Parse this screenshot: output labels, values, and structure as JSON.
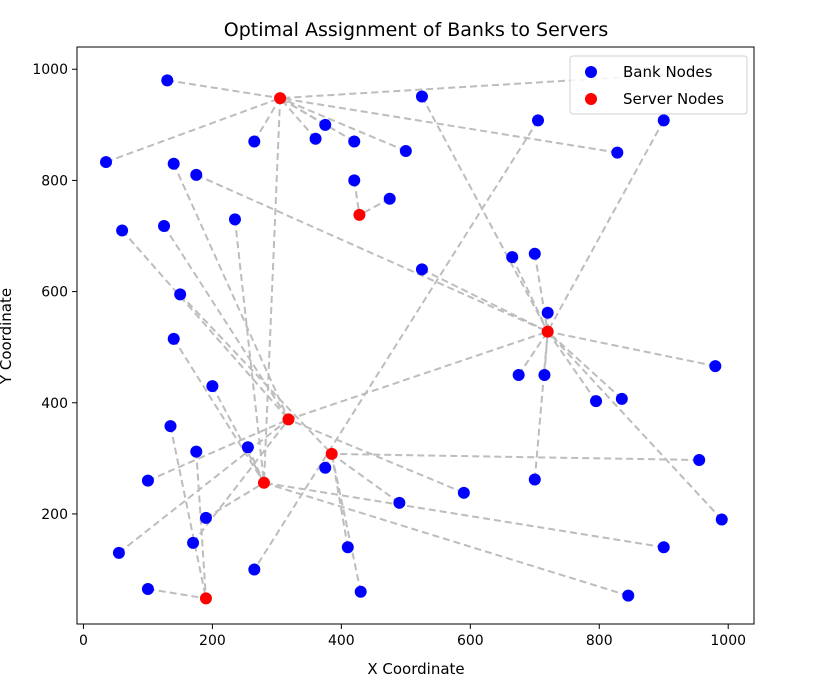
{
  "chart_data": {
    "type": "scatter",
    "title": "Optimal Assignment of Banks to Servers",
    "xlabel": "X Coordinate",
    "ylabel": "Y Coordinate",
    "xlim": [
      -10,
      1040
    ],
    "ylim": [
      2,
      1040
    ],
    "xticks": [
      0,
      200,
      400,
      600,
      800,
      1000
    ],
    "yticks": [
      200,
      400,
      600,
      800,
      1000
    ],
    "grid": false,
    "legend_position": "top-right",
    "colors": {
      "bank": "#0000ff",
      "server": "#ff0000",
      "link": "#bdbdbd"
    },
    "series": [
      {
        "name": "Bank Nodes",
        "points": [
          [
            130,
            980
          ],
          [
            35,
            833
          ],
          [
            140,
            830
          ],
          [
            175,
            810
          ],
          [
            60,
            710
          ],
          [
            125,
            718
          ],
          [
            235,
            730
          ],
          [
            265,
            870
          ],
          [
            360,
            875
          ],
          [
            375,
            900
          ],
          [
            420,
            870
          ],
          [
            500,
            853
          ],
          [
            525,
            951
          ],
          [
            420,
            800
          ],
          [
            475,
            767
          ],
          [
            525,
            640
          ],
          [
            705,
            908
          ],
          [
            828,
            850
          ],
          [
            900,
            908
          ],
          [
            150,
            595
          ],
          [
            140,
            515
          ],
          [
            200,
            430
          ],
          [
            135,
            358
          ],
          [
            175,
            312
          ],
          [
            100,
            260
          ],
          [
            255,
            320
          ],
          [
            190,
            193
          ],
          [
            170,
            148
          ],
          [
            55,
            130
          ],
          [
            100,
            65
          ],
          [
            265,
            100
          ],
          [
            375,
            283
          ],
          [
            410,
            140
          ],
          [
            430,
            60
          ],
          [
            490,
            220
          ],
          [
            590,
            238
          ],
          [
            665,
            662
          ],
          [
            700,
            668
          ],
          [
            720,
            562
          ],
          [
            675,
            450
          ],
          [
            715,
            450
          ],
          [
            795,
            403
          ],
          [
            835,
            407
          ],
          [
            980,
            466
          ],
          [
            955,
            297
          ],
          [
            700,
            262
          ],
          [
            990,
            190
          ],
          [
            900,
            140
          ],
          [
            845,
            53
          ]
        ]
      },
      {
        "name": "Server Nodes",
        "points": [
          [
            305,
            948
          ],
          [
            428,
            738
          ],
          [
            720,
            528
          ],
          [
            318,
            370
          ],
          [
            385,
            308
          ],
          [
            280,
            256
          ],
          [
            190,
            48
          ]
        ]
      }
    ],
    "links": [
      [
        [
          130,
          980
        ],
        [
          305,
          948
        ]
      ],
      [
        [
          35,
          833
        ],
        [
          305,
          948
        ]
      ],
      [
        [
          265,
          870
        ],
        [
          305,
          948
        ]
      ],
      [
        [
          360,
          875
        ],
        [
          305,
          948
        ]
      ],
      [
        [
          375,
          900
        ],
        [
          305,
          948
        ]
      ],
      [
        [
          420,
          870
        ],
        [
          305,
          948
        ]
      ],
      [
        [
          500,
          853
        ],
        [
          305,
          948
        ]
      ],
      [
        [
          828,
          850
        ],
        [
          305,
          948
        ]
      ],
      [
        [
          900,
          990
        ],
        [
          305,
          948
        ]
      ],
      [
        [
          420,
          800
        ],
        [
          428,
          738
        ]
      ],
      [
        [
          475,
          767
        ],
        [
          428,
          738
        ]
      ],
      [
        [
          525,
          951
        ],
        [
          720,
          528
        ]
      ],
      [
        [
          900,
          908
        ],
        [
          720,
          528
        ]
      ],
      [
        [
          175,
          810
        ],
        [
          720,
          528
        ]
      ],
      [
        [
          525,
          640
        ],
        [
          720,
          528
        ]
      ],
      [
        [
          665,
          662
        ],
        [
          720,
          528
        ]
      ],
      [
        [
          700,
          668
        ],
        [
          720,
          528
        ]
      ],
      [
        [
          720,
          562
        ],
        [
          720,
          528
        ]
      ],
      [
        [
          675,
          450
        ],
        [
          720,
          528
        ]
      ],
      [
        [
          715,
          450
        ],
        [
          720,
          528
        ]
      ],
      [
        [
          795,
          403
        ],
        [
          720,
          528
        ]
      ],
      [
        [
          835,
          407
        ],
        [
          720,
          528
        ]
      ],
      [
        [
          980,
          466
        ],
        [
          720,
          528
        ]
      ],
      [
        [
          990,
          190
        ],
        [
          720,
          528
        ]
      ],
      [
        [
          700,
          262
        ],
        [
          720,
          528
        ]
      ],
      [
        [
          318,
          370
        ],
        [
          720,
          528
        ]
      ],
      [
        [
          705,
          908
        ],
        [
          265,
          100
        ]
      ],
      [
        [
          140,
          830
        ],
        [
          318,
          370
        ]
      ],
      [
        [
          125,
          718
        ],
        [
          318,
          370
        ]
      ],
      [
        [
          60,
          710
        ],
        [
          318,
          370
        ]
      ],
      [
        [
          100,
          260
        ],
        [
          318,
          370
        ]
      ],
      [
        [
          590,
          238
        ],
        [
          318,
          370
        ]
      ],
      [
        [
          150,
          595
        ],
        [
          385,
          308
        ]
      ],
      [
        [
          375,
          283
        ],
        [
          385,
          308
        ]
      ],
      [
        [
          410,
          140
        ],
        [
          385,
          308
        ]
      ],
      [
        [
          430,
          60
        ],
        [
          385,
          308
        ]
      ],
      [
        [
          490,
          220
        ],
        [
          385,
          308
        ]
      ],
      [
        [
          955,
          297
        ],
        [
          385,
          308
        ]
      ],
      [
        [
          235,
          730
        ],
        [
          280,
          256
        ]
      ],
      [
        [
          140,
          515
        ],
        [
          280,
          256
        ]
      ],
      [
        [
          200,
          430
        ],
        [
          280,
          256
        ]
      ],
      [
        [
          255,
          320
        ],
        [
          280,
          256
        ]
      ],
      [
        [
          190,
          193
        ],
        [
          280,
          256
        ]
      ],
      [
        [
          900,
          140
        ],
        [
          280,
          256
        ]
      ],
      [
        [
          845,
          53
        ],
        [
          280,
          256
        ]
      ],
      [
        [
          305,
          948
        ],
        [
          280,
          256
        ]
      ],
      [
        [
          135,
          358
        ],
        [
          190,
          48
        ]
      ],
      [
        [
          175,
          312
        ],
        [
          190,
          48
        ]
      ],
      [
        [
          100,
          65
        ],
        [
          190,
          48
        ]
      ],
      [
        [
          55,
          130
        ],
        [
          318,
          370
        ]
      ],
      [
        [
          170,
          148
        ],
        [
          318,
          370
        ]
      ]
    ]
  }
}
